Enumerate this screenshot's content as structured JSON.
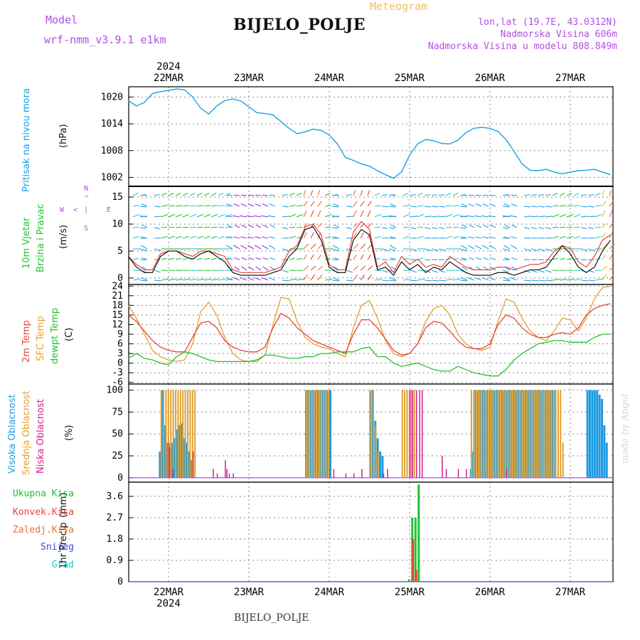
{
  "header": {
    "model_label": "Model",
    "model_value": "wrf-nmm_v3.9.1 e1km",
    "meteogram": "Meteogram",
    "station": "BIJELO_POLJE",
    "lonlat": "lon,lat (19.7E, 43.0312N)",
    "elevation": "Nadmorska Visina 606m",
    "model_elevation": "Nadmorska Visina u modelu 808.849m",
    "footer_station": "BIJELO_POLJE",
    "watermark": "made by Angel",
    "year_top": "2024",
    "year_bottom": "2024"
  },
  "colors": {
    "pressure": "#1aa0e6",
    "temp2m": "#e8453c",
    "sfc": "#e0a030",
    "dew": "#22c030",
    "high_cloud": "#1e9be0",
    "mid_cloud": "#e0a030",
    "low_cloud": "#d0208a",
    "total_precip": "#22c030",
    "conv_precip": "#e8453c"
  },
  "chart_data": [
    {
      "type": "line",
      "panel": "pressure",
      "ylabel_1": "Pritisak na nivou mora",
      "ylabel_2": "(hPa)",
      "x_labels": [
        "22MAR",
        "23MAR",
        "24MAR",
        "25MAR",
        "26MAR",
        "27MAR"
      ],
      "yticks": [
        1002,
        1008,
        1014,
        1020
      ],
      "ylim": [
        1000,
        1022.3
      ],
      "x": [
        -0.5,
        -0.4,
        -0.3,
        -0.2,
        -0.1,
        0,
        0.1,
        0.2,
        0.3,
        0.4,
        0.5,
        0.6,
        0.7,
        0.8,
        0.9,
        1.0,
        1.1,
        1.2,
        1.3,
        1.4,
        1.5,
        1.6,
        1.7,
        1.8,
        1.9,
        2.0,
        2.1,
        2.2,
        2.3,
        2.4,
        2.5,
        2.6,
        2.7,
        2.8,
        2.9,
        3.0,
        3.1,
        3.2,
        3.3,
        3.4,
        3.5,
        3.6,
        3.7,
        3.8,
        3.9,
        4.0,
        4.1,
        4.2,
        4.3,
        4.4,
        4.5,
        4.6,
        4.7,
        4.8,
        4.9,
        5.0,
        5.1,
        5.2,
        5.3,
        5.4,
        5.5
      ],
      "series": [
        {
          "values": [
            1019.2,
            1018,
            1018.8,
            1020.8,
            1021.2,
            1021.5,
            1021.8,
            1021.6,
            1020,
            1017.5,
            1016.2,
            1018,
            1019.2,
            1019.6,
            1019.1,
            1017.8,
            1016.5,
            1016.3,
            1016,
            1014.5,
            1013,
            1011.8,
            1012.2,
            1012.8,
            1012.5,
            1011.5,
            1009.5,
            1006.5,
            1005.8,
            1005,
            1004.5,
            1003.5,
            1002.6,
            1001.8,
            1003.2,
            1007,
            1009.5,
            1010.5,
            1010.2,
            1009.6,
            1009.5,
            1010.3,
            1012,
            1013,
            1013.2,
            1013,
            1012.3,
            1010.5,
            1007.8,
            1005,
            1003.6,
            1003.5,
            1003.8,
            1003.2,
            1002.8,
            1003.2,
            1003.5,
            1003.6,
            1003.8,
            1003.2,
            1002.6
          ]
        }
      ]
    },
    {
      "type": "line",
      "panel": "wind",
      "ylabel_1": "10m Vjetar",
      "ylabel_2": "Brzina i Pravac",
      "ylabel_3": "(m/s)",
      "yticks": [
        0,
        5,
        10,
        15
      ],
      "ylim": [
        -1.2,
        17
      ],
      "compass": {
        "n": "N",
        "e": "E",
        "w": "W",
        "s": "S",
        "left": "<",
        "up": "^",
        "line": "|"
      },
      "x": [
        -0.5,
        -0.4,
        -0.3,
        -0.2,
        -0.1,
        0,
        0.1,
        0.2,
        0.3,
        0.4,
        0.5,
        0.6,
        0.7,
        0.8,
        0.9,
        1.0,
        1.1,
        1.2,
        1.3,
        1.4,
        1.5,
        1.6,
        1.7,
        1.8,
        1.9,
        2.0,
        2.1,
        2.2,
        2.3,
        2.4,
        2.5,
        2.6,
        2.7,
        2.8,
        2.9,
        3.0,
        3.1,
        3.2,
        3.3,
        3.4,
        3.5,
        3.6,
        3.7,
        3.8,
        3.9,
        4.0,
        4.1,
        4.2,
        4.3,
        4.4,
        4.5,
        4.6,
        4.7,
        4.8,
        4.9,
        5.0,
        5.1,
        5.2,
        5.3,
        5.4,
        5.5
      ],
      "series": [
        {
          "values": [
            4,
            2.5,
            1.5,
            1.5,
            4.5,
            5,
            5,
            4.5,
            4,
            5,
            5,
            4.5,
            4,
            1.5,
            1,
            1,
            1,
            1,
            1.5,
            2,
            5,
            6,
            9.5,
            10,
            8,
            2.5,
            1.5,
            1.5,
            8.5,
            10.5,
            9,
            2,
            3,
            1,
            4,
            2.5,
            3.5,
            2,
            2.5,
            2,
            4,
            3,
            2,
            1.5,
            1.5,
            1.5,
            2,
            2,
            1.5,
            2,
            2.5,
            2.5,
            3,
            5,
            6,
            5.5,
            3,
            2,
            4,
            7,
            8
          ]
        },
        {
          "values": [
            4,
            2,
            1,
            1,
            4,
            5,
            5,
            4,
            3.5,
            4.5,
            5,
            4,
            3,
            1,
            0.5,
            0.5,
            0.5,
            0.5,
            1,
            1.5,
            4,
            5.5,
            9,
            9.5,
            7,
            2,
            1,
            1,
            7,
            9,
            8,
            1.5,
            2,
            0.5,
            3,
            1.5,
            2.5,
            1,
            2,
            1.5,
            3,
            2,
            1,
            0.5,
            0.5,
            0.5,
            1,
            1,
            0.5,
            1,
            1.5,
            1.5,
            2,
            4,
            6,
            4.5,
            2,
            1,
            2,
            5,
            7
          ]
        }
      ]
    },
    {
      "type": "line",
      "panel": "temperature",
      "ylabel_1": "2m Temp",
      "ylabel_2": "SFC Temp",
      "ylabel_3": "dewpt Temp",
      "ylabel_4": "(C)",
      "yticks": [
        -6,
        -3,
        0,
        3,
        6,
        9,
        12,
        15,
        18,
        21,
        24
      ],
      "ylim": [
        -6.5,
        24.5
      ],
      "x": [
        -0.5,
        -0.4,
        -0.3,
        -0.2,
        -0.1,
        0,
        0.1,
        0.2,
        0.3,
        0.4,
        0.5,
        0.6,
        0.7,
        0.8,
        0.9,
        1.0,
        1.1,
        1.2,
        1.3,
        1.4,
        1.5,
        1.6,
        1.7,
        1.8,
        1.9,
        2.0,
        2.1,
        2.2,
        2.3,
        2.4,
        2.5,
        2.6,
        2.7,
        2.8,
        2.9,
        3.0,
        3.1,
        3.2,
        3.3,
        3.4,
        3.5,
        3.6,
        3.7,
        3.8,
        3.9,
        4.0,
        4.1,
        4.2,
        4.3,
        4.4,
        4.5,
        4.6,
        4.7,
        4.8,
        4.9,
        5.0,
        5.1,
        5.2,
        5.3,
        5.4,
        5.5
      ],
      "series": [
        {
          "name": "2m Temp",
          "values": [
            15,
            13,
            10,
            7,
            5,
            4,
            3.5,
            3.5,
            8,
            12.5,
            13,
            11,
            7,
            5,
            4,
            3.5,
            3.5,
            5,
            11,
            15.5,
            14,
            11,
            9,
            7,
            6,
            5,
            4,
            3,
            9,
            13.5,
            13.5,
            11,
            7.5,
            4,
            2.5,
            3,
            6,
            11,
            13,
            12.5,
            10,
            7,
            5,
            4.5,
            4.5,
            6,
            12,
            15,
            14,
            11,
            9,
            8,
            8,
            9,
            9.5,
            9,
            11,
            15,
            17,
            18,
            18.5
          ]
        },
        {
          "name": "SFC Temp",
          "values": [
            18,
            14,
            9,
            4,
            2,
            1,
            0.5,
            1,
            6,
            16,
            19,
            15,
            8,
            3,
            1,
            0.5,
            0.5,
            2.5,
            12,
            20.5,
            20,
            13,
            8,
            6,
            5,
            4.5,
            3,
            2,
            11,
            18,
            19.5,
            14,
            7,
            3,
            2,
            3,
            6,
            13,
            17,
            18,
            15,
            9,
            6,
            4.5,
            4,
            5,
            13,
            20,
            19,
            14,
            10,
            8,
            7,
            10,
            14,
            13.5,
            10,
            14,
            20,
            23.5,
            24
          ]
        },
        {
          "name": "dewpt Temp",
          "values": [
            1.5,
            3,
            1.5,
            1,
            0,
            -0.5,
            2,
            3.5,
            3,
            2,
            1,
            0.5,
            0.5,
            0.5,
            0.5,
            0.5,
            1,
            2.5,
            2.5,
            2,
            1.5,
            1.5,
            2,
            2,
            3,
            3,
            3.5,
            3.5,
            3.5,
            4.5,
            5,
            2,
            2,
            0,
            -1,
            -0.5,
            0,
            -1,
            -2,
            -2.5,
            -2.5,
            -1,
            -2,
            -3,
            -3.5,
            -4,
            -4,
            -2,
            1,
            3,
            4.5,
            6,
            6.5,
            7,
            7,
            6.5,
            6.5,
            6.5,
            8,
            9,
            9
          ]
        }
      ]
    },
    {
      "type": "bar",
      "panel": "clouds",
      "ylabel_1": "Visoka Oblacnost",
      "ylabel_2": "Srednja Oblacnost",
      "ylabel_3": "Niska Oblacnost",
      "ylabel_4": "(%)",
      "yticks": [
        0,
        25,
        50,
        75,
        100
      ],
      "ylim": [
        -5,
        107
      ],
      "series": [
        {
          "name": "Visoka Oblacnost",
          "x": [
            -0.12,
            -0.09,
            -0.06,
            -0.03,
            0.0,
            0.03,
            0.06,
            0.09,
            0.12,
            0.15,
            0.18,
            0.21,
            0.24,
            0.27,
            1.7,
            1.73,
            1.76,
            1.79,
            1.82,
            1.85,
            1.88,
            1.91,
            1.94,
            1.97,
            2.0,
            2.5,
            2.53,
            2.56,
            2.59,
            2.62,
            2.65,
            3.75,
            3.78,
            3.81,
            3.84,
            3.87,
            3.9,
            3.93,
            3.96,
            3.99,
            4.02,
            4.05,
            4.08,
            4.11,
            4.14,
            4.17,
            4.2,
            4.23,
            4.26,
            4.29,
            4.32,
            4.35,
            4.38,
            4.41,
            4.44,
            4.47,
            4.5,
            4.53,
            4.56,
            4.59,
            4.62,
            4.65,
            4.68,
            4.71,
            4.74,
            4.77,
            4.8,
            5.2,
            5.23,
            5.26,
            5.29,
            5.32,
            5.35,
            5.38,
            5.41,
            5.44
          ],
          "values": [
            30,
            100,
            60,
            40,
            35,
            40,
            45,
            55,
            60,
            62,
            45,
            40,
            30,
            20,
            100,
            100,
            100,
            100,
            100,
            100,
            100,
            100,
            100,
            100,
            100,
            100,
            100,
            65,
            45,
            30,
            25,
            10,
            30,
            100,
            100,
            100,
            100,
            100,
            100,
            100,
            100,
            100,
            100,
            100,
            100,
            100,
            100,
            100,
            100,
            100,
            100,
            100,
            100,
            100,
            100,
            100,
            100,
            100,
            100,
            100,
            100,
            100,
            100,
            100,
            100,
            100,
            100,
            100,
            100,
            100,
            100,
            100,
            95,
            90,
            60,
            40
          ]
        },
        {
          "name": "Srednja Oblacnost",
          "x": [
            -0.1,
            -0.07,
            -0.04,
            -0.01,
            0.02,
            0.05,
            0.08,
            0.11,
            0.14,
            0.17,
            0.2,
            0.23,
            0.26,
            0.29,
            0.32,
            1.71,
            1.74,
            1.77,
            1.8,
            1.83,
            1.86,
            1.89,
            1.92,
            1.95,
            1.98,
            2.51,
            2.54,
            2.57,
            2.6,
            2.9,
            2.93,
            2.96,
            2.99,
            3.02,
            3.05,
            3.76,
            3.79,
            3.82,
            3.85,
            3.88,
            3.91,
            3.94,
            3.97,
            4.0,
            4.03,
            4.06,
            4.09,
            4.12,
            4.15,
            4.18,
            4.21,
            4.24,
            4.27,
            4.3,
            4.33,
            4.36,
            4.39,
            4.42,
            4.45,
            4.48,
            4.51,
            4.54,
            4.57,
            4.6,
            4.63,
            4.66,
            4.69,
            4.72,
            4.75,
            4.78,
            4.81,
            4.84,
            4.87,
            4.9
          ],
          "values": [
            100,
            100,
            100,
            100,
            100,
            100,
            100,
            100,
            100,
            100,
            100,
            100,
            100,
            100,
            100,
            100,
            100,
            100,
            100,
            100,
            100,
            100,
            100,
            100,
            100,
            100,
            100,
            60,
            30,
            100,
            100,
            100,
            100,
            100,
            100,
            100,
            100,
            100,
            100,
            100,
            100,
            100,
            100,
            100,
            100,
            100,
            100,
            100,
            100,
            100,
            100,
            100,
            100,
            100,
            100,
            100,
            100,
            100,
            100,
            100,
            100,
            100,
            100,
            100,
            100,
            100,
            100,
            100,
            100,
            100,
            100,
            100,
            100,
            40
          ]
        },
        {
          "name": "Niska Oblacnost",
          "x": [
            0.0,
            0.05,
            0.3,
            0.55,
            0.6,
            0.7,
            0.72,
            0.75,
            0.8,
            2.05,
            2.2,
            2.3,
            2.4,
            2.67,
            2.72,
            3.0,
            3.03,
            3.08,
            3.12,
            3.15,
            3.4,
            3.45,
            3.6,
            3.7,
            4.2
          ],
          "values": [
            40,
            10,
            30,
            10,
            5,
            20,
            10,
            5,
            5,
            10,
            5,
            5,
            10,
            5,
            10,
            100,
            100,
            100,
            100,
            100,
            25,
            10,
            10,
            10,
            10
          ]
        }
      ]
    },
    {
      "type": "bar",
      "panel": "precip",
      "ylabel_1": "1hr Precip",
      "ylabel_2": "(mm)",
      "legend": [
        "Ukupna Kisa",
        "Konvek.Kisa",
        "Zaledj.Kisa",
        "Snijeg",
        "Grad"
      ],
      "legend_colors": [
        "#22c030",
        "#e8453c",
        "#f07030",
        "#4444e0",
        "#22c8c8"
      ],
      "yticks": [
        0,
        0.9,
        1.8,
        2.7,
        3.6
      ],
      "ylim": [
        0,
        4.2
      ],
      "series": [
        {
          "name": "Ukupna Kisa",
          "x": [
            2.98,
            3.02,
            3.06,
            3.1
          ],
          "values": [
            0.1,
            2.7,
            2.7,
            4.1
          ]
        },
        {
          "name": "Konvek.Kisa",
          "x": [
            3.02,
            3.06
          ],
          "values": [
            1.8,
            0.5
          ]
        }
      ]
    }
  ]
}
